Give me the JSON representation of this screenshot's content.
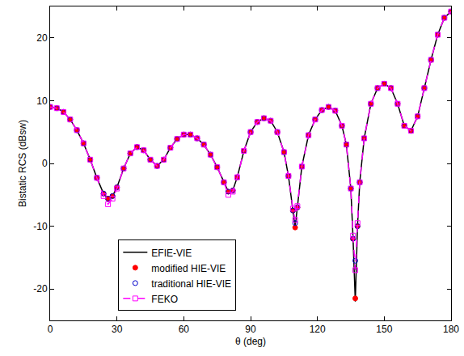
{
  "chart_data": {
    "type": "line",
    "x_label": "θ (deg)",
    "y_label": "Bistatic RCS (dBsw)",
    "xlim": [
      0,
      180
    ],
    "xticks": [
      0,
      30,
      60,
      90,
      120,
      150,
      180
    ],
    "ylim": [
      -25,
      25
    ],
    "yticks": [
      -20,
      -10,
      0,
      10,
      20
    ],
    "grid": false,
    "legend": "lower left",
    "x": [
      0,
      3,
      6,
      9,
      12,
      15,
      18,
      21,
      24,
      26,
      28,
      30,
      33,
      36,
      39,
      42,
      45,
      48,
      51,
      54,
      57,
      60,
      63,
      66,
      69,
      72,
      75,
      78,
      80,
      82,
      84,
      87,
      90,
      93,
      96,
      99,
      102,
      105,
      107,
      109,
      110,
      111,
      113,
      116,
      119,
      122,
      125,
      128,
      131,
      133,
      135,
      136,
      137,
      138,
      139,
      141,
      144,
      147,
      150,
      153,
      156,
      159,
      162,
      165,
      168,
      171,
      174,
      177,
      180
    ],
    "series": [
      {
        "name": "EFIE-VIE",
        "color": "#000000",
        "marker": "none",
        "line_style": "solid",
        "values": [
          9.0,
          8.8,
          8.2,
          7.0,
          5.3,
          3.2,
          0.6,
          -2.3,
          -4.8,
          -5.6,
          -5.2,
          -3.8,
          -0.8,
          1.6,
          2.6,
          2.1,
          0.6,
          -0.4,
          0.6,
          2.5,
          3.9,
          4.6,
          4.6,
          4.0,
          3.0,
          1.4,
          -0.6,
          -3.0,
          -4.5,
          -4.3,
          -2.2,
          2.0,
          5.0,
          6.6,
          7.2,
          6.8,
          5.0,
          1.8,
          -2.0,
          -7.5,
          -10.0,
          -7.0,
          -0.5,
          4.5,
          7.0,
          8.5,
          9.0,
          8.4,
          6.0,
          3.0,
          -4.0,
          -12.0,
          -22.0,
          -10.0,
          -3.0,
          4.0,
          9.5,
          12.0,
          12.7,
          12.0,
          9.5,
          6.0,
          5.2,
          7.5,
          12.0,
          16.5,
          20.5,
          23.2,
          24.2
        ]
      },
      {
        "name": "modified HIE-VIE",
        "color": "#ff0000",
        "marker": "circle",
        "line_style": "none",
        "values": [
          9.0,
          8.8,
          8.2,
          7.0,
          5.3,
          3.2,
          0.6,
          -2.3,
          -4.8,
          -5.6,
          -5.2,
          -3.8,
          -0.8,
          1.6,
          2.6,
          2.1,
          0.6,
          -0.4,
          0.6,
          2.5,
          3.9,
          4.6,
          4.6,
          4.0,
          3.0,
          1.4,
          -0.6,
          -3.0,
          -4.5,
          -4.3,
          -2.2,
          2.0,
          5.0,
          6.6,
          7.2,
          6.8,
          5.0,
          1.8,
          -2.0,
          -7.5,
          -10.2,
          -7.0,
          -0.5,
          4.5,
          7.0,
          8.5,
          9.0,
          8.4,
          6.0,
          3.0,
          -4.0,
          -12.0,
          -21.5,
          -10.0,
          -3.0,
          4.0,
          9.5,
          12.0,
          12.7,
          12.0,
          9.5,
          6.0,
          5.2,
          7.5,
          12.0,
          16.5,
          20.5,
          23.2,
          24.2
        ]
      },
      {
        "name": "traditional HIE-VIE",
        "color": "#0000cc",
        "marker": "circle-open",
        "line_style": "none",
        "values": [
          9.0,
          8.8,
          8.2,
          7.0,
          5.3,
          3.2,
          0.6,
          -2.3,
          -4.8,
          -5.6,
          -5.2,
          -3.8,
          -0.8,
          1.6,
          2.6,
          2.1,
          0.6,
          -0.4,
          0.6,
          2.5,
          3.9,
          4.6,
          4.6,
          4.0,
          3.0,
          1.4,
          -0.6,
          -3.0,
          -4.5,
          -4.3,
          -2.2,
          2.0,
          5.0,
          6.6,
          7.2,
          6.8,
          5.0,
          1.8,
          -2.0,
          -7.5,
          -9.5,
          -7.0,
          -0.5,
          4.5,
          7.0,
          8.5,
          9.0,
          8.4,
          6.0,
          3.0,
          -4.0,
          -12.0,
          -15.5,
          -10.0,
          -3.0,
          4.0,
          9.5,
          12.0,
          12.7,
          12.0,
          9.5,
          6.0,
          5.2,
          7.5,
          12.0,
          16.5,
          20.5,
          23.2,
          24.2
        ]
      },
      {
        "name": "FEKO",
        "color": "#ff00ff",
        "marker": "square-open",
        "line_style": "dashed",
        "values": [
          9.0,
          8.8,
          8.2,
          7.0,
          5.3,
          3.2,
          0.6,
          -2.3,
          -5.2,
          -6.5,
          -5.6,
          -4.0,
          -0.8,
          1.6,
          2.6,
          2.1,
          0.6,
          -0.4,
          0.6,
          2.5,
          3.9,
          4.6,
          4.6,
          4.0,
          3.0,
          1.4,
          -0.6,
          -3.0,
          -5.0,
          -4.5,
          -2.2,
          2.0,
          5.0,
          6.6,
          7.2,
          6.8,
          5.0,
          1.8,
          -2.0,
          -7.2,
          -9.0,
          -6.8,
          -0.5,
          4.5,
          7.0,
          8.5,
          9.0,
          8.4,
          6.0,
          3.0,
          -4.0,
          -11.5,
          -17.0,
          -9.5,
          -3.0,
          4.0,
          9.5,
          12.0,
          12.7,
          12.0,
          9.5,
          6.0,
          5.2,
          7.5,
          12.0,
          16.5,
          20.5,
          23.2,
          24.2
        ]
      }
    ]
  }
}
